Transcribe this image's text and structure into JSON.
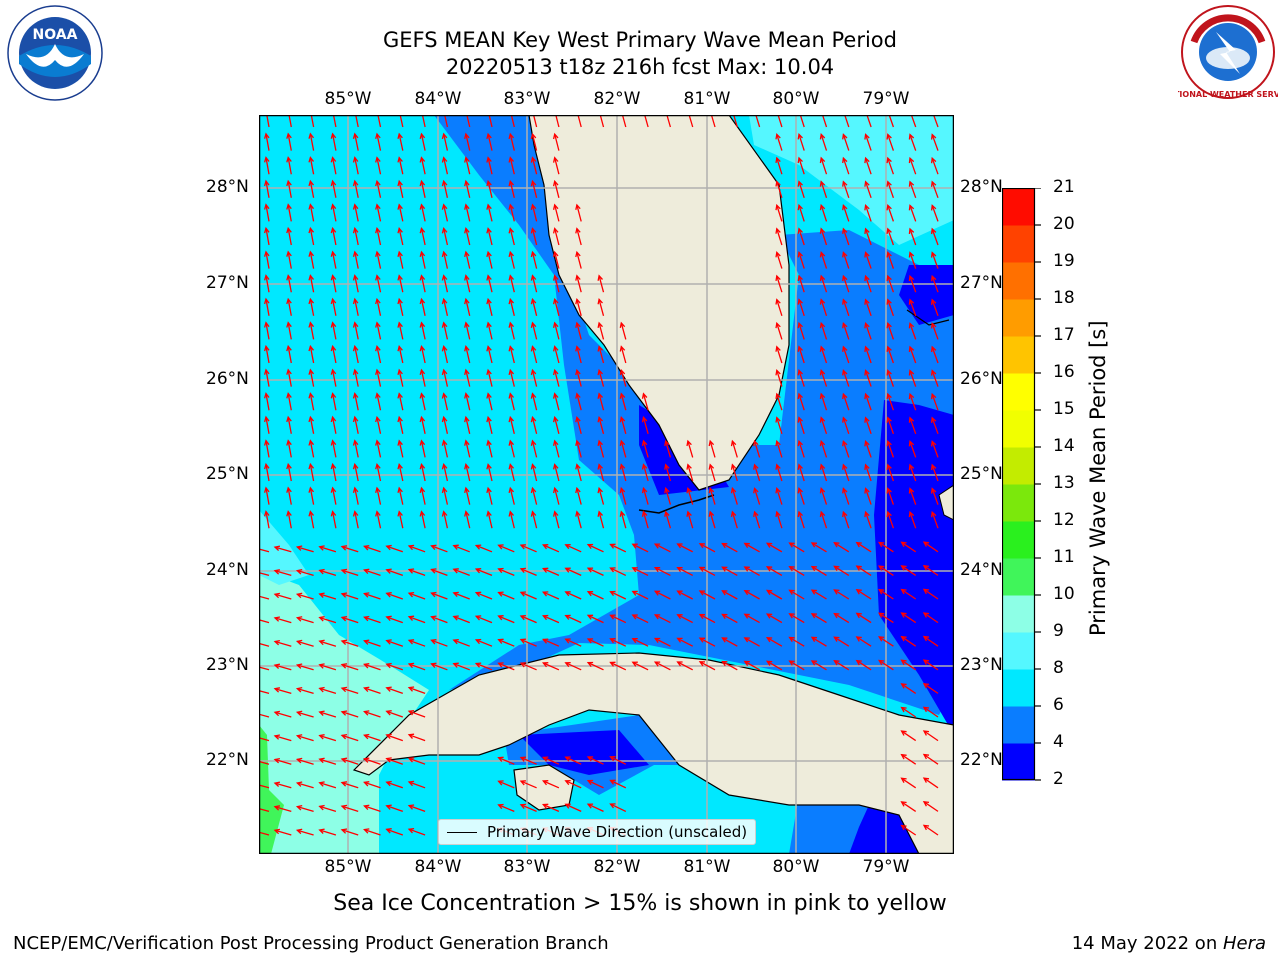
{
  "title": {
    "line1": "GEFS MEAN Key West Primary Wave Mean Period",
    "line2": "20220513 t18z 216h fcst   Max: 10.04"
  },
  "map": {
    "lon_ticks": [
      "85°W",
      "84°W",
      "83°W",
      "82°W",
      "81°W",
      "80°W",
      "79°W"
    ],
    "lat_ticks": [
      "28°N",
      "27°N",
      "26°N",
      "25°N",
      "24°N",
      "23°N",
      "22°N"
    ],
    "legend": "Primary Wave Direction (unscaled)",
    "colors": {
      "land": "#eeecdb",
      "arrow": "#ff0000",
      "grid": "#b0b0b0",
      "coast": "#000000"
    }
  },
  "colorbar": {
    "title": "Primary Wave Mean Period [s]",
    "ticks": [
      "2",
      "4",
      "6",
      "8",
      "9",
      "10",
      "11",
      "12",
      "13",
      "14",
      "15",
      "16",
      "17",
      "18",
      "19",
      "20",
      "21"
    ],
    "colors": [
      "#0000ff",
      "#0a7dff",
      "#00e8ff",
      "#55f7ff",
      "#8dffe6",
      "#40f55a",
      "#2af01e",
      "#7be80c",
      "#c3ec00",
      "#f1ff00",
      "#ffff00",
      "#ffc400",
      "#ff9c00",
      "#ff7000",
      "#ff4200",
      "#ff0c00"
    ]
  },
  "logos": {
    "left": "NOAA",
    "right": "NATIONAL WEATHER SERVICE"
  },
  "note": "Sea Ice Concentration > 15% is shown in pink to yellow",
  "footer": {
    "left": "NCEP/EMC/Verification Post Processing Product Generation Branch",
    "right_prefix": "14 May 2022 on ",
    "right_host": "Hera"
  }
}
